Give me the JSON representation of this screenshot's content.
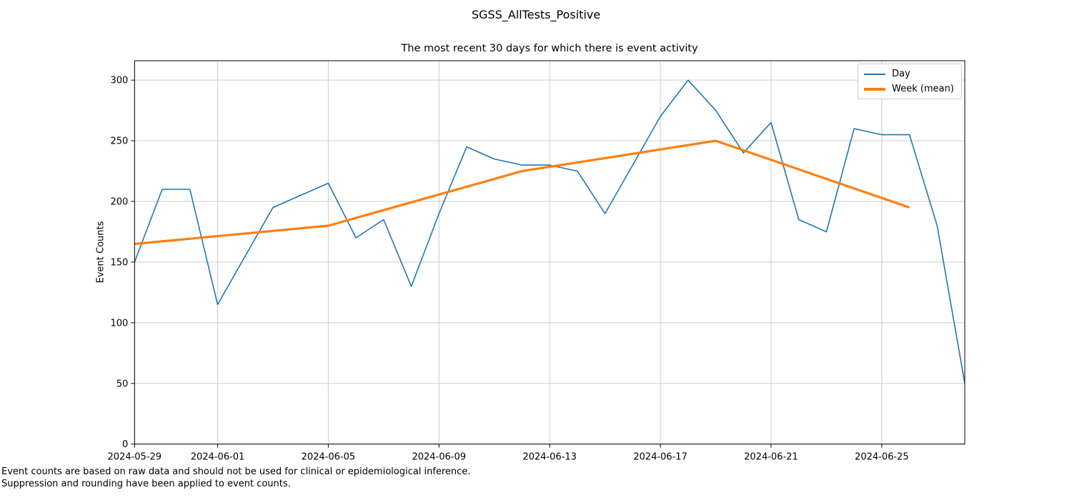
{
  "chart_data": {
    "type": "line",
    "title": "SGSS_AllTests_Positive",
    "subtitle": "The most recent 30 days for which there is event activity",
    "xlabel": "",
    "ylabel": "Event Counts",
    "grid": true,
    "legend_position": "upper right",
    "ylim": [
      0,
      316
    ],
    "xlim_days": [
      0,
      30
    ],
    "y_ticks": [
      0,
      50,
      100,
      150,
      200,
      250,
      300
    ],
    "x_tick_labels": [
      "2024-05-29",
      "2024-06-01",
      "2024-06-05",
      "2024-06-09",
      "2024-06-13",
      "2024-06-17",
      "2024-06-21",
      "2024-06-25"
    ],
    "grid_color": "#cccccc",
    "axis_color": "#000000",
    "series": [
      {
        "name": "Day",
        "color": "#1f77b4",
        "line_width": 1.6,
        "dates": [
          "2024-05-29",
          "2024-05-30",
          "2024-05-31",
          "2024-06-01",
          "2024-06-02",
          "2024-06-03",
          "2024-06-04",
          "2024-06-05",
          "2024-06-06",
          "2024-06-07",
          "2024-06-08",
          "2024-06-09",
          "2024-06-10",
          "2024-06-11",
          "2024-06-12",
          "2024-06-13",
          "2024-06-14",
          "2024-06-15",
          "2024-06-16",
          "2024-06-17",
          "2024-06-18",
          "2024-06-19",
          "2024-06-20",
          "2024-06-21",
          "2024-06-22",
          "2024-06-23",
          "2024-06-24",
          "2024-06-25",
          "2024-06-26",
          "2024-06-27",
          "2024-06-28"
        ],
        "values": [
          150,
          210,
          210,
          115,
          155,
          195,
          205,
          215,
          170,
          185,
          130,
          190,
          245,
          235,
          230,
          230,
          225,
          190,
          230,
          270,
          300,
          275,
          240,
          265,
          185,
          175,
          260,
          255,
          255,
          180,
          50
        ]
      },
      {
        "name": "Week (mean)",
        "color": "#ff7f0e",
        "line_width": 3.2,
        "dates": [
          "2024-05-29",
          "2024-06-05",
          "2024-06-12",
          "2024-06-19",
          "2024-06-26"
        ],
        "values": [
          165,
          180,
          225,
          250,
          195
        ]
      }
    ]
  },
  "footnotes": [
    "Event counts are based on raw data and should not be used for clinical or epidemiological inference.",
    "Suppression and rounding have been applied to event counts."
  ]
}
